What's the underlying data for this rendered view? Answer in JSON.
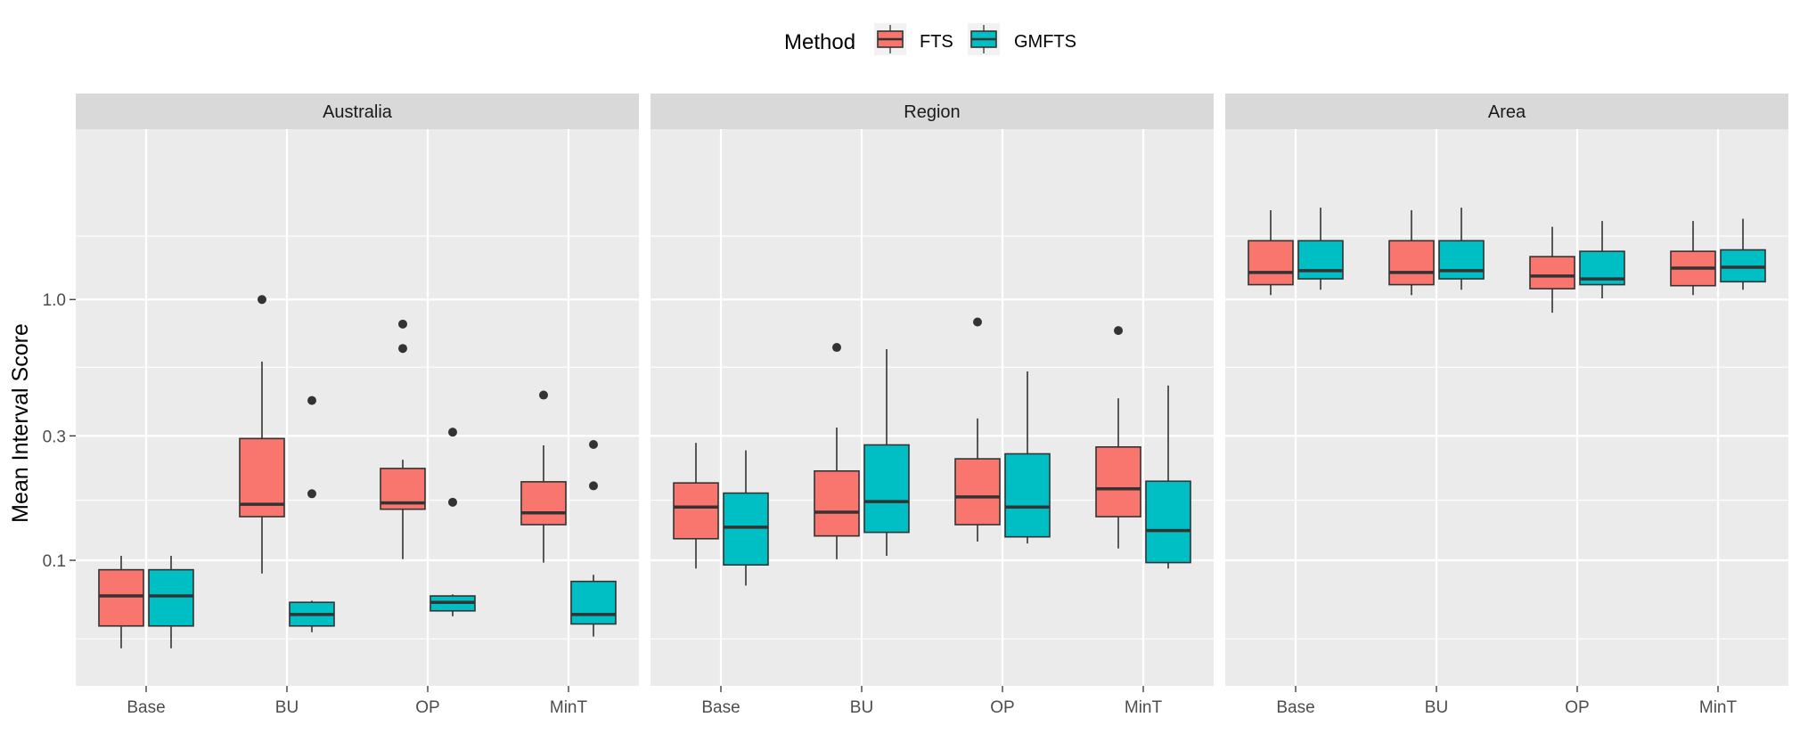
{
  "chart_data": {
    "type": "box",
    "ylabel": "Mean Interval Score",
    "yscale": "log10",
    "ylim": [
      0.033,
      4.5
    ],
    "y_ticks": [
      {
        "value": 0.1,
        "label": "0.1"
      },
      {
        "value": 0.3,
        "label": "0.3"
      },
      {
        "value": 1.0,
        "label": "1.0"
      }
    ],
    "y_minor_ticks": [
      0.05,
      0.17,
      0.55,
      1.75
    ],
    "legend": {
      "title": "Method",
      "position": "top-center",
      "entries": [
        {
          "label": "FTS",
          "color": "#F8766D"
        },
        {
          "label": "GMFTS",
          "color": "#00BFC4"
        }
      ]
    },
    "categories": [
      "Base",
      "BU",
      "OP",
      "MinT"
    ],
    "panels": [
      {
        "title": "Australia",
        "boxes": [
          {
            "category": "Base",
            "method": "FTS",
            "whisker_low": 0.046,
            "q1": 0.056,
            "median": 0.073,
            "q3": 0.092,
            "whisker_high": 0.104,
            "outliers": []
          },
          {
            "category": "Base",
            "method": "GMFTS",
            "whisker_low": 0.046,
            "q1": 0.056,
            "median": 0.073,
            "q3": 0.092,
            "whisker_high": 0.104,
            "outliers": []
          },
          {
            "category": "BU",
            "method": "FTS",
            "whisker_low": 0.089,
            "q1": 0.147,
            "median": 0.164,
            "q3": 0.293,
            "whisker_high": 0.578,
            "outliers": [
              1.0
            ]
          },
          {
            "category": "BU",
            "method": "GMFTS",
            "whisker_low": 0.053,
            "q1": 0.056,
            "median": 0.062,
            "q3": 0.069,
            "whisker_high": 0.07,
            "outliers": [
              0.41,
              0.18
            ]
          },
          {
            "category": "OP",
            "method": "FTS",
            "whisker_low": 0.101,
            "q1": 0.157,
            "median": 0.166,
            "q3": 0.225,
            "whisker_high": 0.243,
            "outliers": [
              0.805,
              0.649
            ]
          },
          {
            "category": "OP",
            "method": "GMFTS",
            "whisker_low": 0.061,
            "q1": 0.064,
            "median": 0.069,
            "q3": 0.073,
            "whisker_high": 0.074,
            "outliers": [
              0.31,
              0.167
            ]
          },
          {
            "category": "MinT",
            "method": "FTS",
            "whisker_low": 0.098,
            "q1": 0.137,
            "median": 0.152,
            "q3": 0.2,
            "whisker_high": 0.276,
            "outliers": [
              0.43
            ]
          },
          {
            "category": "MinT",
            "method": "GMFTS",
            "whisker_low": 0.051,
            "q1": 0.057,
            "median": 0.062,
            "q3": 0.083,
            "whisker_high": 0.088,
            "outliers": [
              0.278,
              0.193
            ]
          }
        ]
      },
      {
        "title": "Region",
        "boxes": [
          {
            "category": "Base",
            "method": "FTS",
            "whisker_low": 0.093,
            "q1": 0.121,
            "median": 0.16,
            "q3": 0.198,
            "whisker_high": 0.282,
            "outliers": []
          },
          {
            "category": "Base",
            "method": "GMFTS",
            "whisker_low": 0.08,
            "q1": 0.096,
            "median": 0.134,
            "q3": 0.181,
            "whisker_high": 0.264,
            "outliers": []
          },
          {
            "category": "BU",
            "method": "FTS",
            "whisker_low": 0.101,
            "q1": 0.124,
            "median": 0.153,
            "q3": 0.22,
            "whisker_high": 0.323,
            "outliers": [
              0.655
            ]
          },
          {
            "category": "BU",
            "method": "GMFTS",
            "whisker_low": 0.104,
            "q1": 0.128,
            "median": 0.168,
            "q3": 0.277,
            "whisker_high": 0.645,
            "outliers": []
          },
          {
            "category": "OP",
            "method": "FTS",
            "whisker_low": 0.118,
            "q1": 0.137,
            "median": 0.175,
            "q3": 0.245,
            "whisker_high": 0.35,
            "outliers": [
              0.82
            ]
          },
          {
            "category": "OP",
            "method": "GMFTS",
            "whisker_low": 0.116,
            "q1": 0.123,
            "median": 0.16,
            "q3": 0.256,
            "whisker_high": 0.53,
            "outliers": []
          },
          {
            "category": "MinT",
            "method": "FTS",
            "whisker_low": 0.111,
            "q1": 0.147,
            "median": 0.188,
            "q3": 0.272,
            "whisker_high": 0.418,
            "outliers": [
              0.76
            ]
          },
          {
            "category": "MinT",
            "method": "GMFTS",
            "whisker_low": 0.093,
            "q1": 0.098,
            "median": 0.13,
            "q3": 0.201,
            "whisker_high": 0.468,
            "outliers": []
          }
        ]
      },
      {
        "title": "Area",
        "boxes": [
          {
            "category": "Base",
            "method": "FTS",
            "whisker_low": 1.04,
            "q1": 1.14,
            "median": 1.27,
            "q3": 1.68,
            "whisker_high": 2.2,
            "outliers": []
          },
          {
            "category": "Base",
            "method": "GMFTS",
            "whisker_low": 1.09,
            "q1": 1.2,
            "median": 1.29,
            "q3": 1.68,
            "whisker_high": 2.25,
            "outliers": []
          },
          {
            "category": "BU",
            "method": "FTS",
            "whisker_low": 1.04,
            "q1": 1.14,
            "median": 1.27,
            "q3": 1.68,
            "whisker_high": 2.2,
            "outliers": []
          },
          {
            "category": "BU",
            "method": "GMFTS",
            "whisker_low": 1.09,
            "q1": 1.2,
            "median": 1.29,
            "q3": 1.68,
            "whisker_high": 2.25,
            "outliers": []
          },
          {
            "category": "OP",
            "method": "FTS",
            "whisker_low": 0.89,
            "q1": 1.1,
            "median": 1.23,
            "q3": 1.46,
            "whisker_high": 1.9,
            "outliers": []
          },
          {
            "category": "OP",
            "method": "GMFTS",
            "whisker_low": 1.01,
            "q1": 1.14,
            "median": 1.2,
            "q3": 1.53,
            "whisker_high": 2.0,
            "outliers": []
          },
          {
            "category": "MinT",
            "method": "FTS",
            "whisker_low": 1.04,
            "q1": 1.13,
            "median": 1.32,
            "q3": 1.53,
            "whisker_high": 2.0,
            "outliers": []
          },
          {
            "category": "MinT",
            "method": "GMFTS",
            "whisker_low": 1.09,
            "q1": 1.17,
            "median": 1.33,
            "q3": 1.55,
            "whisker_high": 2.04,
            "outliers": []
          }
        ]
      }
    ]
  }
}
